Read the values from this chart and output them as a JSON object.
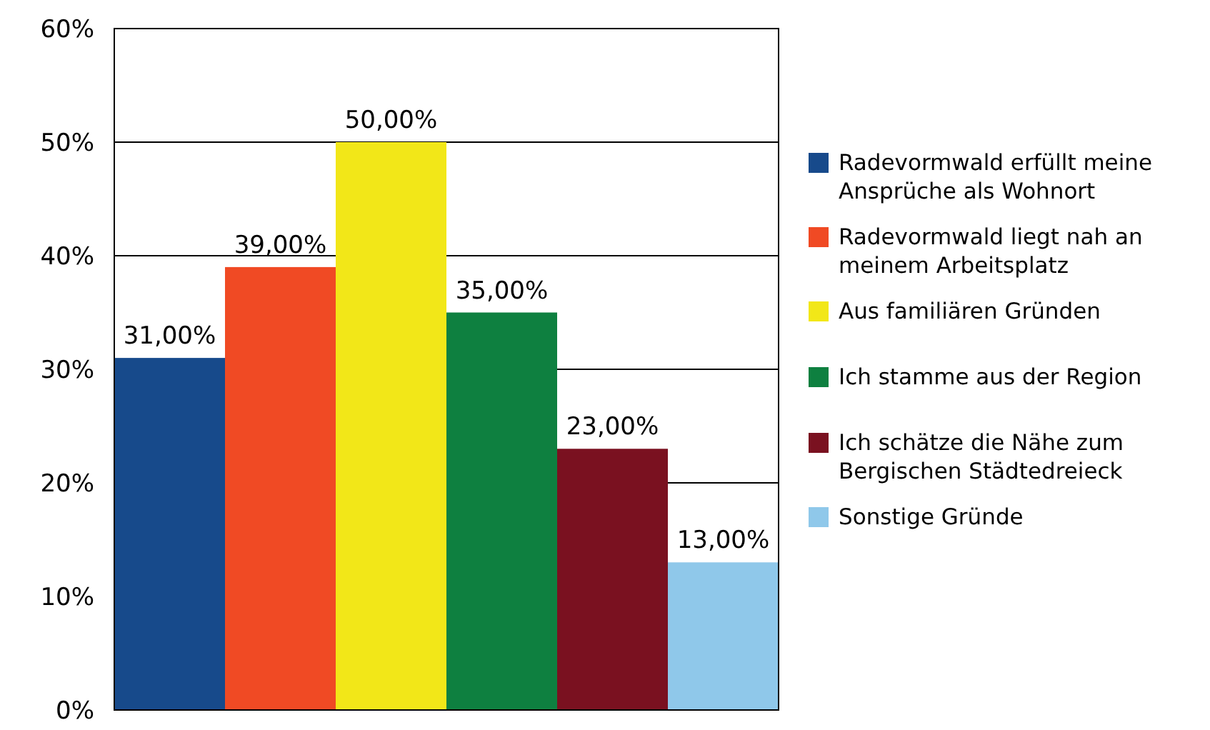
{
  "chart_data": {
    "type": "bar",
    "categories": [
      null
    ],
    "series": [
      {
        "name": "Radevormwald erfüllt meine Ansprüche als Wohnort",
        "color": "#174a8b",
        "values": [
          31
        ],
        "value_labels": [
          "31,00%"
        ]
      },
      {
        "name": "Radevormwald liegt nah an meinem Arbeitsplatz",
        "color": "#f04a24",
        "values": [
          39
        ],
        "value_labels": [
          "39,00%"
        ]
      },
      {
        "name": "Aus familiären Gründen",
        "color": "#f2e718",
        "values": [
          50
        ],
        "value_labels": [
          "50,00%"
        ]
      },
      {
        "name": "Ich stamme aus der Region",
        "color": "#0e8040",
        "values": [
          35
        ],
        "value_labels": [
          "35,00%"
        ]
      },
      {
        "name": "Ich schätze die Nähe zum Bergischen Städtedreieck",
        "color": "#7a1120",
        "values": [
          23
        ],
        "value_labels": [
          "23,00%"
        ]
      },
      {
        "name": "Sonstige Gründe",
        "color": "#8fc8ea",
        "values": [
          13
        ],
        "value_labels": [
          "13,00%"
        ]
      }
    ],
    "ylim": [
      0,
      60
    ],
    "yticks": [
      {
        "value": 0,
        "label": "0%"
      },
      {
        "value": 10,
        "label": "10%"
      },
      {
        "value": 20,
        "label": "20%"
      },
      {
        "value": 30,
        "label": "30%"
      },
      {
        "value": 40,
        "label": "40%"
      },
      {
        "value": 50,
        "label": "50%"
      },
      {
        "value": 60,
        "label": "60%"
      }
    ],
    "grid": "y",
    "legend": "right"
  }
}
